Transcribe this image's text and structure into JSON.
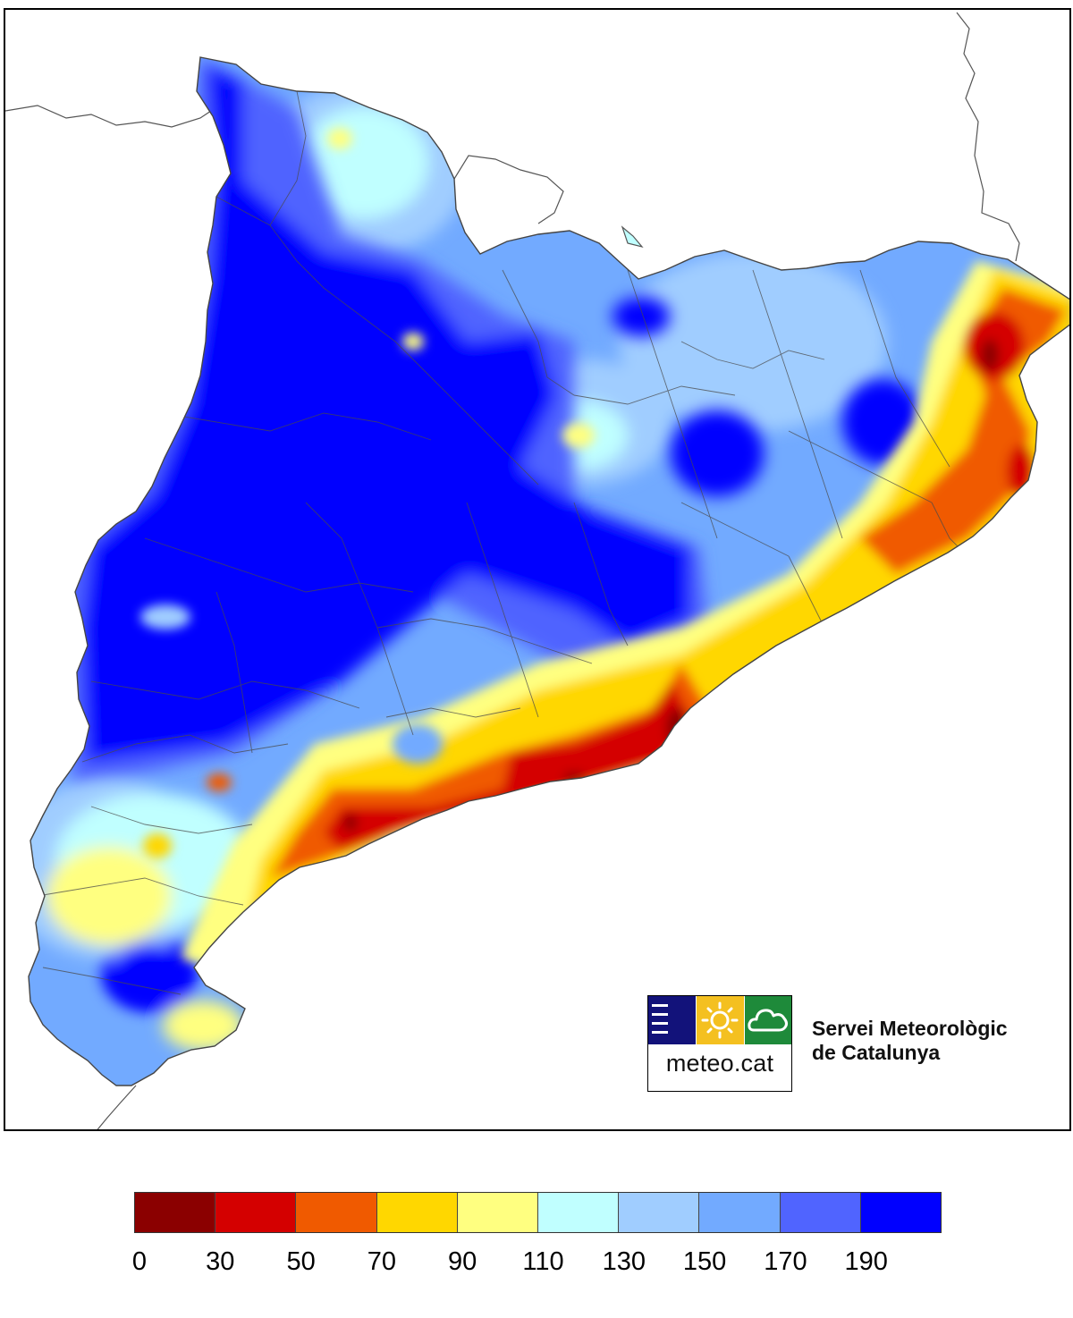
{
  "map": {
    "organization": {
      "logo_text": "meteo.cat",
      "name_line1": "Servei Meteorològic",
      "name_line2": "de Catalunya"
    },
    "colors": {
      "0-30": "#8b0000",
      "30-50": "#d40000",
      "50-70": "#f05a00",
      "70-90": "#ffd700",
      "90-110": "#ffff80",
      "110-130": "#c0ffff",
      "130-150": "#a0cdff",
      "150-170": "#72aaff",
      "170-190": "#5064ff",
      "190+": "#0000ff",
      "border_line": "#555555",
      "sea": "#ffffff"
    },
    "logo_colors": {
      "navy": "#12127a",
      "yellow": "#f4c020",
      "green": "#1e8a3a"
    }
  },
  "legend": {
    "bins": [
      {
        "from": 0,
        "to": 30,
        "color": "#8b0000"
      },
      {
        "from": 30,
        "to": 50,
        "color": "#d40000"
      },
      {
        "from": 50,
        "to": 70,
        "color": "#f05a00"
      },
      {
        "from": 70,
        "to": 90,
        "color": "#ffd700"
      },
      {
        "from": 90,
        "to": 110,
        "color": "#ffff80"
      },
      {
        "from": 110,
        "to": 130,
        "color": "#c0ffff"
      },
      {
        "from": 130,
        "to": 150,
        "color": "#a0cdff"
      },
      {
        "from": 150,
        "to": 170,
        "color": "#72aaff"
      },
      {
        "from": 170,
        "to": 190,
        "color": "#5064ff"
      },
      {
        "from": 190,
        "to": null,
        "color": "#0000ff"
      }
    ],
    "tick_labels": [
      "0",
      "30",
      "50",
      "70",
      "90",
      "110",
      "130",
      "150",
      "170",
      "190"
    ]
  }
}
